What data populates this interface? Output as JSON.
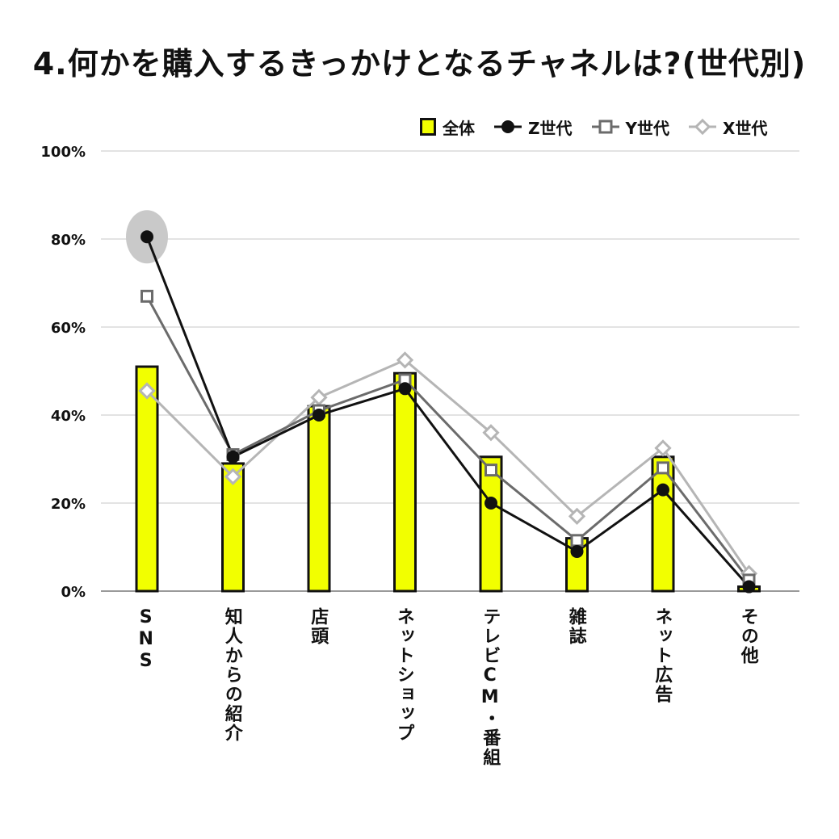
{
  "chart_data": {
    "type": "bar",
    "title": "4.何かを購入するきっかけとなるチャネルは?(世代別)",
    "categories": [
      "SNS",
      "知人からの紹介",
      "店頭",
      "ネットショップ",
      "テレビCM・番組",
      "雑誌",
      "ネット広告",
      "その他"
    ],
    "ylim": [
      0,
      100
    ],
    "yticks": [
      "0%",
      "20%",
      "40%",
      "60%",
      "80%",
      "100%"
    ],
    "grid": true,
    "legend_position": "top-right",
    "series": [
      {
        "name": "全体",
        "type": "bar",
        "color": "#f2ff00",
        "values": [
          51,
          29,
          42,
          49.5,
          30.5,
          12,
          30.5,
          1
        ]
      },
      {
        "name": "Z世代",
        "type": "line",
        "marker": "circle",
        "color": "#111111",
        "values": [
          80.5,
          30.5,
          40,
          46,
          20,
          9,
          23,
          1
        ]
      },
      {
        "name": "Y世代",
        "type": "line",
        "marker": "square",
        "color": "#6b6b6b",
        "values": [
          67,
          31,
          41,
          48,
          27.5,
          11.5,
          28,
          2.5
        ]
      },
      {
        "name": "X世代",
        "type": "line",
        "marker": "diamond",
        "color": "#b5b5b5",
        "values": [
          45.5,
          26,
          44,
          52.5,
          36,
          17,
          32.5,
          4
        ]
      }
    ],
    "highlight": {
      "category": "SNS",
      "series": "Z世代"
    }
  }
}
